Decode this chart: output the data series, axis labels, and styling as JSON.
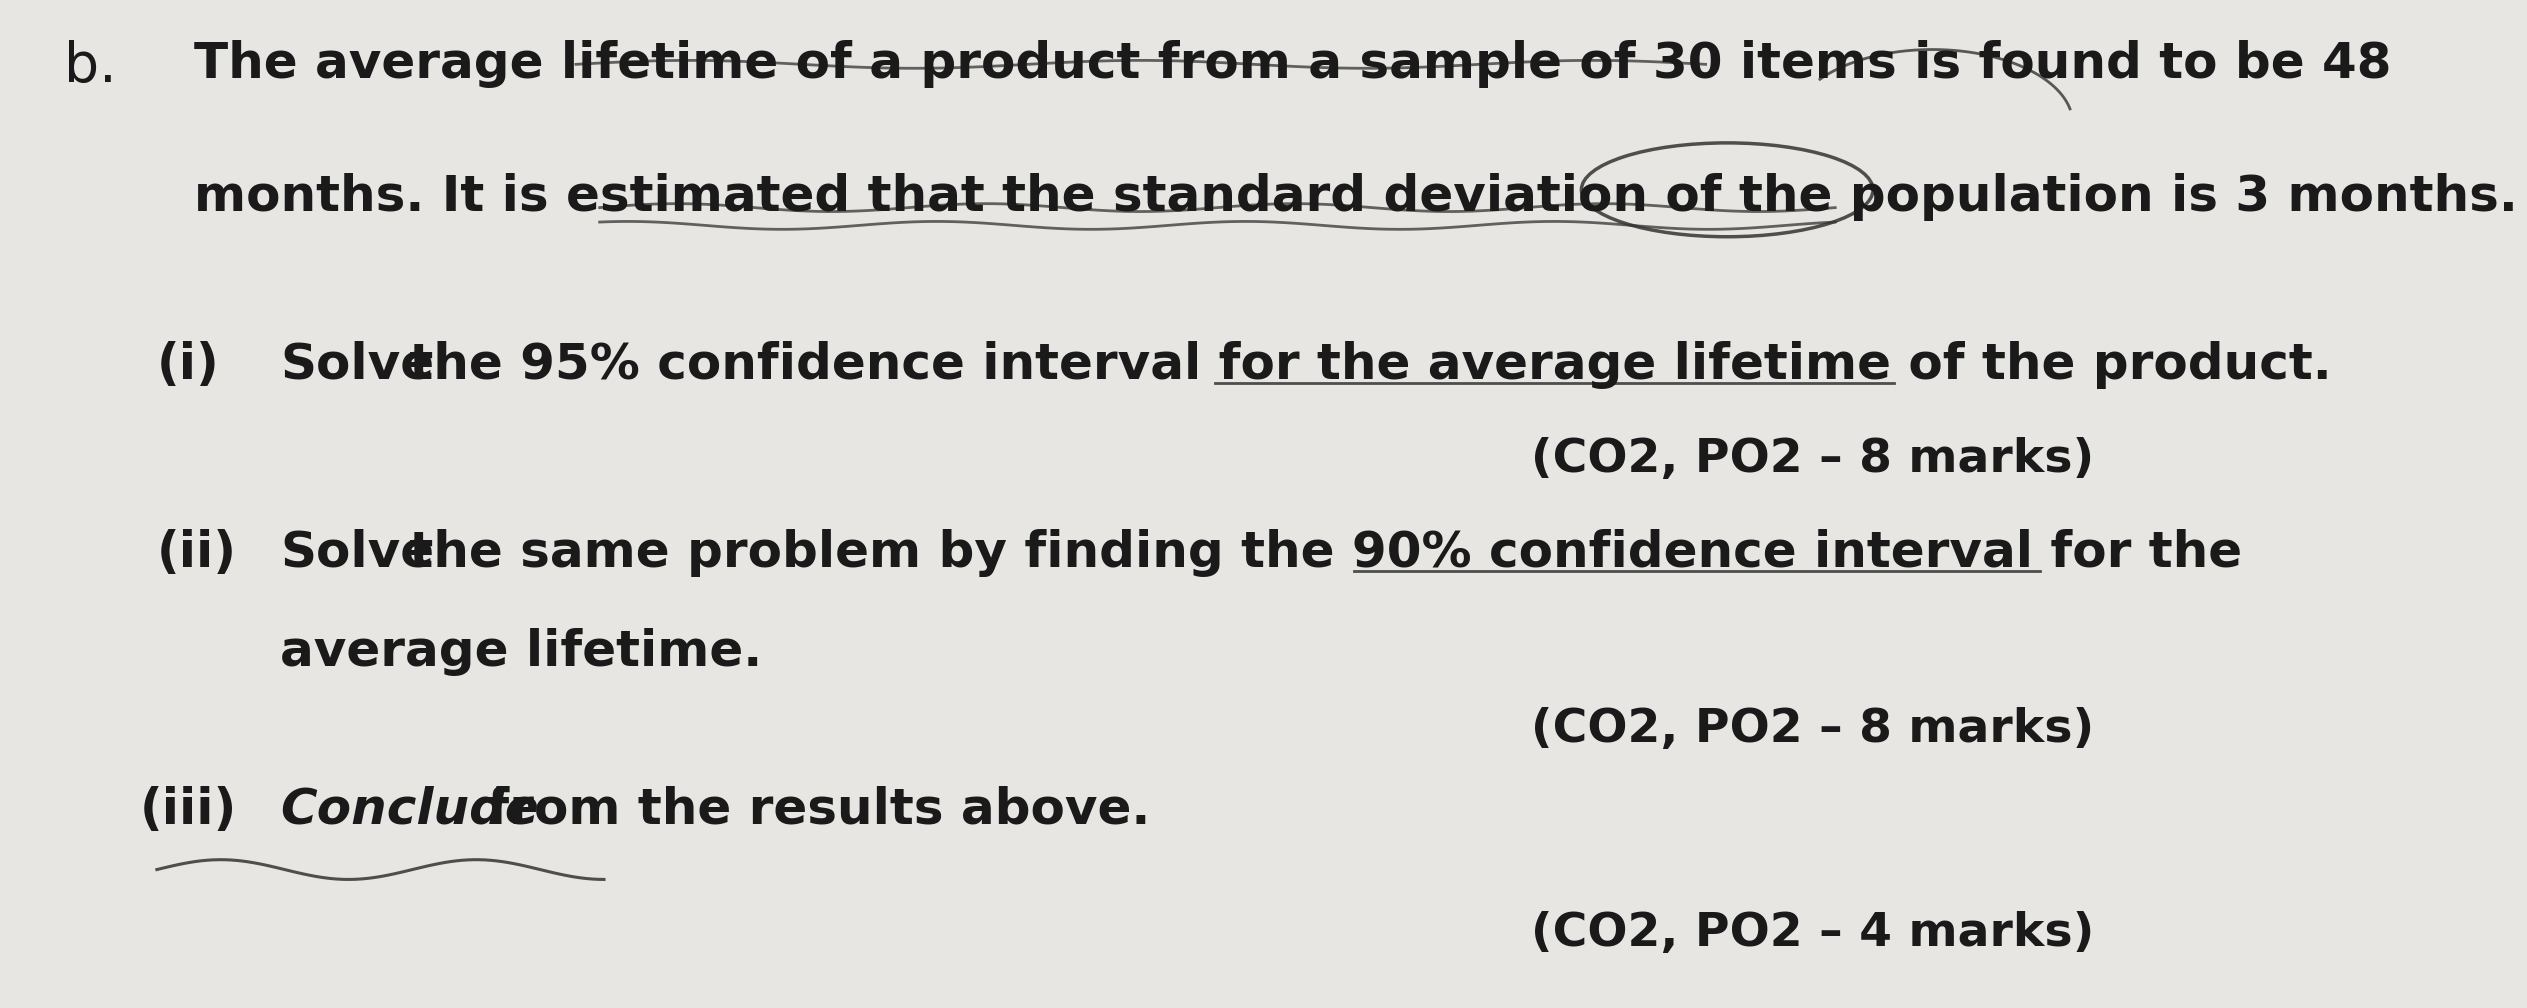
{
  "bg_color": "#e8e6e3",
  "text_color": "#1a1a1a",
  "prefix_b": "b.",
  "line1": "The average lifetime of a product from a sample of 30 items is found to be 48",
  "line2": "months. It is estimated that the standard deviation of the population is 3 months.",
  "q1_num": "(i)",
  "q1_bold": "Solve",
  "q1_rest": " the 95% confidence interval for the average lifetime of the product.",
  "q1_marks": "(CO2, PO2 – 8 marks)",
  "q2_num": "(ii)",
  "q2_bold": "Solve",
  "q2_rest": " the same problem by finding the 90% confidence interval for the",
  "q2_line2": "average lifetime.",
  "q2_marks": "(CO2, PO2 – 8 marks)",
  "q3_num": "(iii)",
  "q3_bold": "Conclude",
  "q3_rest": " from the results above.",
  "q3_marks": "(CO2, PO2 – 4 marks)",
  "font_size_main": 36,
  "font_size_marks": 34,
  "font_size_b": 40
}
